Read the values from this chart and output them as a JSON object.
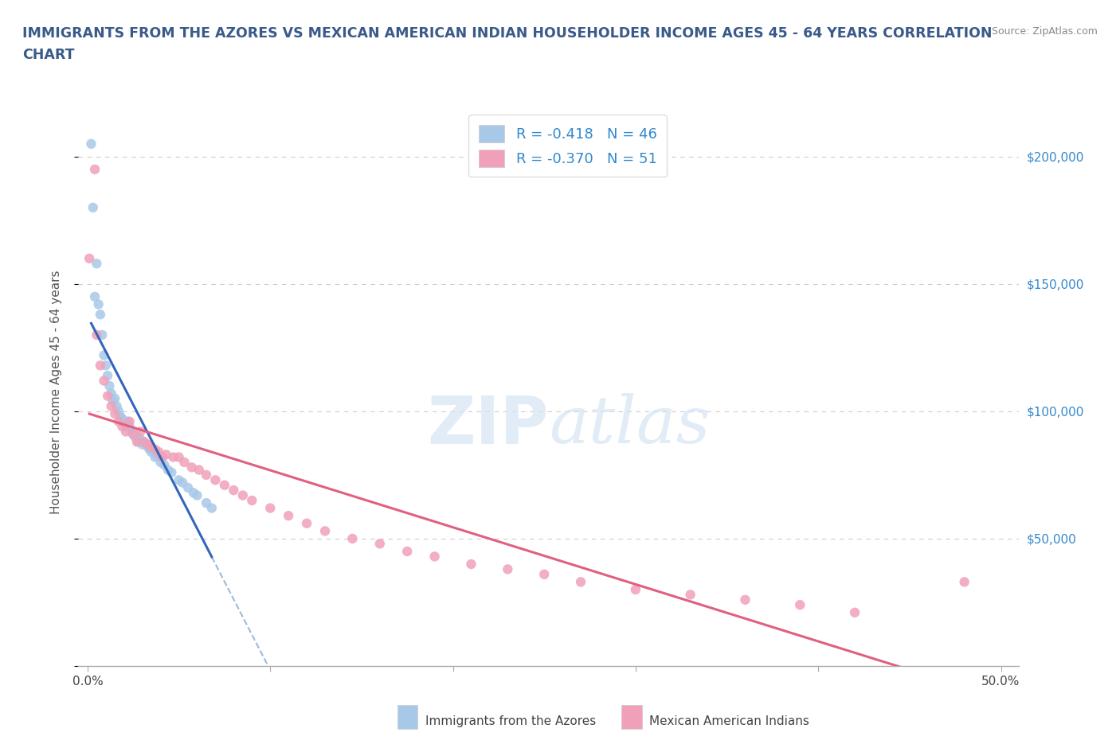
{
  "title_line1": "IMMIGRANTS FROM THE AZORES VS MEXICAN AMERICAN INDIAN HOUSEHOLDER INCOME AGES 45 - 64 YEARS CORRELATION",
  "title_line2": "CHART",
  "source": "Source: ZipAtlas.com",
  "ylabel": "Householder Income Ages 45 - 64 years",
  "xlim": [
    -0.005,
    0.51
  ],
  "ylim": [
    0,
    215000
  ],
  "legend_labels": [
    "Immigrants from the Azores",
    "Mexican American Indians"
  ],
  "R_azores": -0.418,
  "N_azores": 46,
  "R_mexican": -0.37,
  "N_mexican": 51,
  "color_azores": "#A8C8E8",
  "color_mexican": "#F0A0B8",
  "line_color_azores": "#3366BB",
  "line_color_mexican": "#E06080",
  "line_color_azores_ext": "#99BBDD",
  "title_color": "#3A5A8A",
  "source_color": "#888888",
  "ylabel_color": "#555555",
  "tick_label_color_x": "#444444",
  "tick_label_color_y": "#3388CC",
  "grid_color": "#CCCCCC",
  "azores_x": [
    0.002,
    0.003,
    0.004,
    0.005,
    0.006,
    0.007,
    0.008,
    0.009,
    0.01,
    0.011,
    0.012,
    0.013,
    0.014,
    0.015,
    0.016,
    0.017,
    0.018,
    0.019,
    0.02,
    0.021,
    0.022,
    0.023,
    0.024,
    0.025,
    0.026,
    0.027,
    0.028,
    0.029,
    0.03,
    0.031,
    0.033,
    0.034,
    0.035,
    0.037,
    0.038,
    0.04,
    0.042,
    0.044,
    0.046,
    0.05,
    0.052,
    0.055,
    0.058,
    0.06,
    0.065,
    0.068
  ],
  "azores_y": [
    205000,
    180000,
    145000,
    158000,
    142000,
    138000,
    130000,
    122000,
    118000,
    114000,
    110000,
    107000,
    104000,
    105000,
    102000,
    100000,
    98000,
    97000,
    96000,
    94000,
    96000,
    94000,
    92000,
    91000,
    90000,
    90000,
    88000,
    89000,
    87000,
    88000,
    86000,
    85000,
    84000,
    82000,
    83000,
    80000,
    79000,
    77000,
    76000,
    73000,
    72000,
    70000,
    68000,
    67000,
    64000,
    62000
  ],
  "mexican_x": [
    0.001,
    0.004,
    0.005,
    0.007,
    0.009,
    0.011,
    0.013,
    0.015,
    0.017,
    0.019,
    0.021,
    0.023,
    0.025,
    0.027,
    0.029,
    0.031,
    0.033,
    0.035,
    0.037,
    0.039,
    0.041,
    0.043,
    0.047,
    0.05,
    0.053,
    0.057,
    0.061,
    0.065,
    0.07,
    0.075,
    0.08,
    0.085,
    0.09,
    0.1,
    0.11,
    0.12,
    0.13,
    0.145,
    0.16,
    0.175,
    0.19,
    0.21,
    0.23,
    0.25,
    0.27,
    0.3,
    0.33,
    0.36,
    0.39,
    0.42,
    0.48
  ],
  "mexican_y": [
    160000,
    195000,
    130000,
    118000,
    112000,
    106000,
    102000,
    99000,
    96000,
    94000,
    92000,
    96000,
    91000,
    88000,
    92000,
    88000,
    87000,
    86000,
    85000,
    84000,
    82000,
    83000,
    82000,
    82000,
    80000,
    78000,
    77000,
    75000,
    73000,
    71000,
    69000,
    67000,
    65000,
    62000,
    59000,
    56000,
    53000,
    50000,
    48000,
    45000,
    43000,
    40000,
    38000,
    36000,
    33000,
    30000,
    28000,
    26000,
    24000,
    21000,
    33000
  ],
  "x_ticks": [
    0.0,
    0.1,
    0.2,
    0.3,
    0.4,
    0.5
  ],
  "x_tick_labels_bottom": [
    "0.0%",
    "",
    "",
    "",
    "",
    "50.0%"
  ],
  "y_ticks": [
    0,
    50000,
    100000,
    150000,
    200000
  ],
  "y_right_labels": [
    "",
    "$50,000",
    "$100,000",
    "$150,000",
    "$200,000"
  ]
}
